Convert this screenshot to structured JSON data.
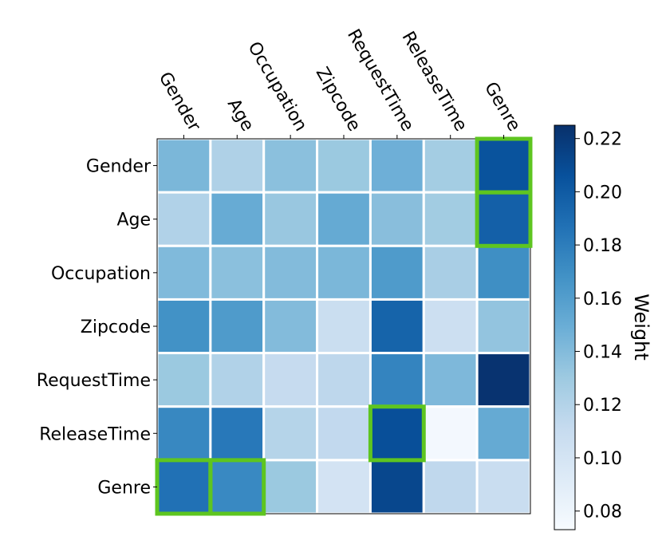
{
  "chart_data": {
    "type": "heatmap",
    "title": "",
    "x_labels": [
      "Gender",
      "Age",
      "Occupation",
      "Zipcode",
      "RequestTime",
      "ReleaseTime",
      "Genre"
    ],
    "y_labels": [
      "Gender",
      "Age",
      "Occupation",
      "Zipcode",
      "RequestTime",
      "ReleaseTime",
      "Genre"
    ],
    "values": [
      [
        0.143,
        0.122,
        0.137,
        0.131,
        0.148,
        0.127,
        0.205
      ],
      [
        0.121,
        0.151,
        0.132,
        0.152,
        0.138,
        0.128,
        0.197
      ],
      [
        0.141,
        0.137,
        0.14,
        0.143,
        0.162,
        0.125,
        0.17
      ],
      [
        0.168,
        0.162,
        0.14,
        0.108,
        0.195,
        0.106,
        0.134
      ],
      [
        0.131,
        0.121,
        0.111,
        0.115,
        0.176,
        0.142,
        0.223
      ],
      [
        0.174,
        0.183,
        0.119,
        0.113,
        0.207,
        0.076,
        0.152
      ],
      [
        0.187,
        0.173,
        0.131,
        0.101,
        0.212,
        0.114,
        0.109
      ]
    ],
    "highlighted_cells": [
      [
        0,
        6
      ],
      [
        1,
        6
      ],
      [
        5,
        4
      ],
      [
        6,
        0
      ],
      [
        6,
        1
      ]
    ],
    "highlight_color": "#5ec520",
    "colorbar": {
      "label": "Weight",
      "vmin": 0.073,
      "vmax": 0.225,
      "ticks": [
        "0.08",
        "0.10",
        "0.12",
        "0.14",
        "0.16",
        "0.18",
        "0.20",
        "0.22"
      ],
      "colormap": "Blues",
      "stops": [
        "#f7fbff",
        "#deebf7",
        "#c6dbef",
        "#9ecae1",
        "#6baed6",
        "#4292c6",
        "#2171b5",
        "#08519c",
        "#08306b"
      ]
    },
    "grid": true
  }
}
